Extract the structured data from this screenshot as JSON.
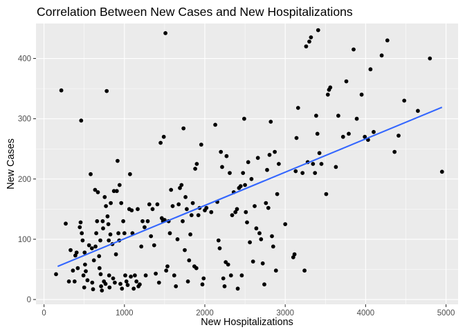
{
  "chart_data": {
    "type": "scatter",
    "title": "Correlation Between New Cases and New Hospitalizations",
    "xlabel": "New Hospitalizations",
    "ylabel": "New Cases",
    "xlim": [
      -100,
      5150
    ],
    "ylim": [
      -8,
      458
    ],
    "xticks": [
      0,
      1000,
      2000,
      3000,
      4000,
      5000
    ],
    "yticks": [
      0,
      100,
      200,
      300,
      400
    ],
    "grid": true,
    "legend": "none",
    "colors": {
      "panel": "#ebebeb",
      "grid_major": "#ffffff",
      "points": "#000000",
      "trend": "#3366ff",
      "tick_text": "#4d4d4d"
    },
    "trend_line": {
      "x": [
        170,
        4950
      ],
      "y": [
        55,
        319
      ]
    },
    "points": [
      [
        150,
        42
      ],
      [
        215,
        347
      ],
      [
        270,
        126
      ],
      [
        310,
        30
      ],
      [
        330,
        82
      ],
      [
        360,
        48
      ],
      [
        380,
        30
      ],
      [
        390,
        73
      ],
      [
        405,
        78
      ],
      [
        420,
        52
      ],
      [
        445,
        120
      ],
      [
        455,
        128
      ],
      [
        462,
        297
      ],
      [
        470,
        110
      ],
      [
        480,
        98
      ],
      [
        490,
        40
      ],
      [
        500,
        20
      ],
      [
        505,
        78
      ],
      [
        510,
        58
      ],
      [
        520,
        47
      ],
      [
        540,
        32
      ],
      [
        560,
        90
      ],
      [
        580,
        208
      ],
      [
        595,
        85
      ],
      [
        600,
        28
      ],
      [
        610,
        17
      ],
      [
        620,
        65
      ],
      [
        635,
        182
      ],
      [
        640,
        88
      ],
      [
        650,
        110
      ],
      [
        660,
        130
      ],
      [
        670,
        178
      ],
      [
        685,
        72
      ],
      [
        690,
        52
      ],
      [
        700,
        98
      ],
      [
        705,
        42
      ],
      [
        710,
        22
      ],
      [
        720,
        15
      ],
      [
        730,
        130
      ],
      [
        735,
        118
      ],
      [
        745,
        30
      ],
      [
        755,
        170
      ],
      [
        765,
        26
      ],
      [
        770,
        155
      ],
      [
        780,
        346
      ],
      [
        790,
        138
      ],
      [
        800,
        125
      ],
      [
        805,
        98
      ],
      [
        810,
        40
      ],
      [
        815,
        20
      ],
      [
        825,
        108
      ],
      [
        830,
        160
      ],
      [
        850,
        92
      ],
      [
        860,
        35
      ],
      [
        870,
        180
      ],
      [
        880,
        28
      ],
      [
        895,
        75
      ],
      [
        905,
        180
      ],
      [
        915,
        230
      ],
      [
        925,
        110
      ],
      [
        935,
        98
      ],
      [
        940,
        190
      ],
      [
        950,
        26
      ],
      [
        960,
        160
      ],
      [
        970,
        18
      ],
      [
        985,
        130
      ],
      [
        1000,
        110
      ],
      [
        1010,
        40
      ],
      [
        1025,
        30
      ],
      [
        1040,
        24
      ],
      [
        1060,
        150
      ],
      [
        1070,
        208
      ],
      [
        1080,
        38
      ],
      [
        1090,
        148
      ],
      [
        1100,
        110
      ],
      [
        1115,
        18
      ],
      [
        1130,
        40
      ],
      [
        1150,
        30
      ],
      [
        1165,
        150
      ],
      [
        1175,
        22
      ],
      [
        1190,
        25
      ],
      [
        1210,
        88
      ],
      [
        1225,
        130
      ],
      [
        1250,
        120
      ],
      [
        1265,
        40
      ],
      [
        1290,
        130
      ],
      [
        1310,
        158
      ],
      [
        1330,
        105
      ],
      [
        1350,
        150
      ],
      [
        1370,
        90
      ],
      [
        1390,
        43
      ],
      [
        1410,
        158
      ],
      [
        1430,
        28
      ],
      [
        1450,
        260
      ],
      [
        1465,
        135
      ],
      [
        1480,
        130
      ],
      [
        1490,
        270
      ],
      [
        1500,
        132
      ],
      [
        1510,
        442
      ],
      [
        1520,
        48
      ],
      [
        1535,
        55
      ],
      [
        1550,
        130
      ],
      [
        1565,
        110
      ],
      [
        1580,
        182
      ],
      [
        1600,
        155
      ],
      [
        1620,
        40
      ],
      [
        1640,
        22
      ],
      [
        1660,
        100
      ],
      [
        1675,
        158
      ],
      [
        1690,
        185
      ],
      [
        1710,
        190
      ],
      [
        1725,
        130
      ],
      [
        1735,
        284
      ],
      [
        1750,
        82
      ],
      [
        1760,
        170
      ],
      [
        1775,
        150
      ],
      [
        1790,
        30
      ],
      [
        1805,
        65
      ],
      [
        1820,
        108
      ],
      [
        1835,
        140
      ],
      [
        1850,
        160
      ],
      [
        1870,
        55
      ],
      [
        1880,
        217
      ],
      [
        1895,
        52
      ],
      [
        1900,
        225
      ],
      [
        1920,
        140
      ],
      [
        1935,
        152
      ],
      [
        1955,
        257
      ],
      [
        1970,
        25
      ],
      [
        1985,
        35
      ],
      [
        2000,
        148
      ],
      [
        2020,
        152
      ],
      [
        2080,
        145
      ],
      [
        2130,
        290
      ],
      [
        2155,
        162
      ],
      [
        2170,
        98
      ],
      [
        2185,
        85
      ],
      [
        2200,
        245
      ],
      [
        2215,
        220
      ],
      [
        2230,
        35
      ],
      [
        2245,
        22
      ],
      [
        2260,
        62
      ],
      [
        2270,
        238
      ],
      [
        2290,
        58
      ],
      [
        2310,
        210
      ],
      [
        2325,
        40
      ],
      [
        2340,
        140
      ],
      [
        2360,
        178
      ],
      [
        2380,
        145
      ],
      [
        2400,
        150
      ],
      [
        2410,
        18
      ],
      [
        2425,
        185
      ],
      [
        2445,
        188
      ],
      [
        2460,
        40
      ],
      [
        2475,
        210
      ],
      [
        2490,
        300
      ],
      [
        2500,
        190
      ],
      [
        2510,
        145
      ],
      [
        2525,
        128
      ],
      [
        2540,
        228
      ],
      [
        2560,
        95
      ],
      [
        2580,
        200
      ],
      [
        2600,
        63
      ],
      [
        2620,
        155
      ],
      [
        2640,
        118
      ],
      [
        2660,
        235
      ],
      [
        2680,
        110
      ],
      [
        2700,
        100
      ],
      [
        2720,
        60
      ],
      [
        2740,
        25
      ],
      [
        2760,
        160
      ],
      [
        2775,
        215
      ],
      [
        2790,
        152
      ],
      [
        2805,
        240
      ],
      [
        2820,
        295
      ],
      [
        2835,
        105
      ],
      [
        2850,
        88
      ],
      [
        2870,
        245
      ],
      [
        2885,
        48
      ],
      [
        2900,
        175
      ],
      [
        2920,
        225
      ],
      [
        3000,
        125
      ],
      [
        3100,
        70
      ],
      [
        3115,
        75
      ],
      [
        3130,
        213
      ],
      [
        3140,
        268
      ],
      [
        3160,
        318
      ],
      [
        3215,
        210
      ],
      [
        3240,
        48
      ],
      [
        3260,
        420
      ],
      [
        3280,
        228
      ],
      [
        3300,
        428
      ],
      [
        3320,
        435
      ],
      [
        3345,
        225
      ],
      [
        3370,
        210
      ],
      [
        3385,
        305
      ],
      [
        3400,
        275
      ],
      [
        3410,
        447
      ],
      [
        3425,
        243
      ],
      [
        3450,
        225
      ],
      [
        3510,
        175
      ],
      [
        3530,
        340
      ],
      [
        3545,
        348
      ],
      [
        3560,
        352
      ],
      [
        3630,
        220
      ],
      [
        3660,
        305
      ],
      [
        3720,
        270
      ],
      [
        3760,
        362
      ],
      [
        3790,
        275
      ],
      [
        3850,
        415
      ],
      [
        3890,
        300
      ],
      [
        3950,
        340
      ],
      [
        3990,
        270
      ],
      [
        4030,
        265
      ],
      [
        4060,
        382
      ],
      [
        4100,
        278
      ],
      [
        4200,
        405
      ],
      [
        4270,
        430
      ],
      [
        4360,
        245
      ],
      [
        4410,
        272
      ],
      [
        4480,
        330
      ],
      [
        4650,
        313
      ],
      [
        4800,
        400
      ],
      [
        4950,
        212
      ]
    ]
  }
}
